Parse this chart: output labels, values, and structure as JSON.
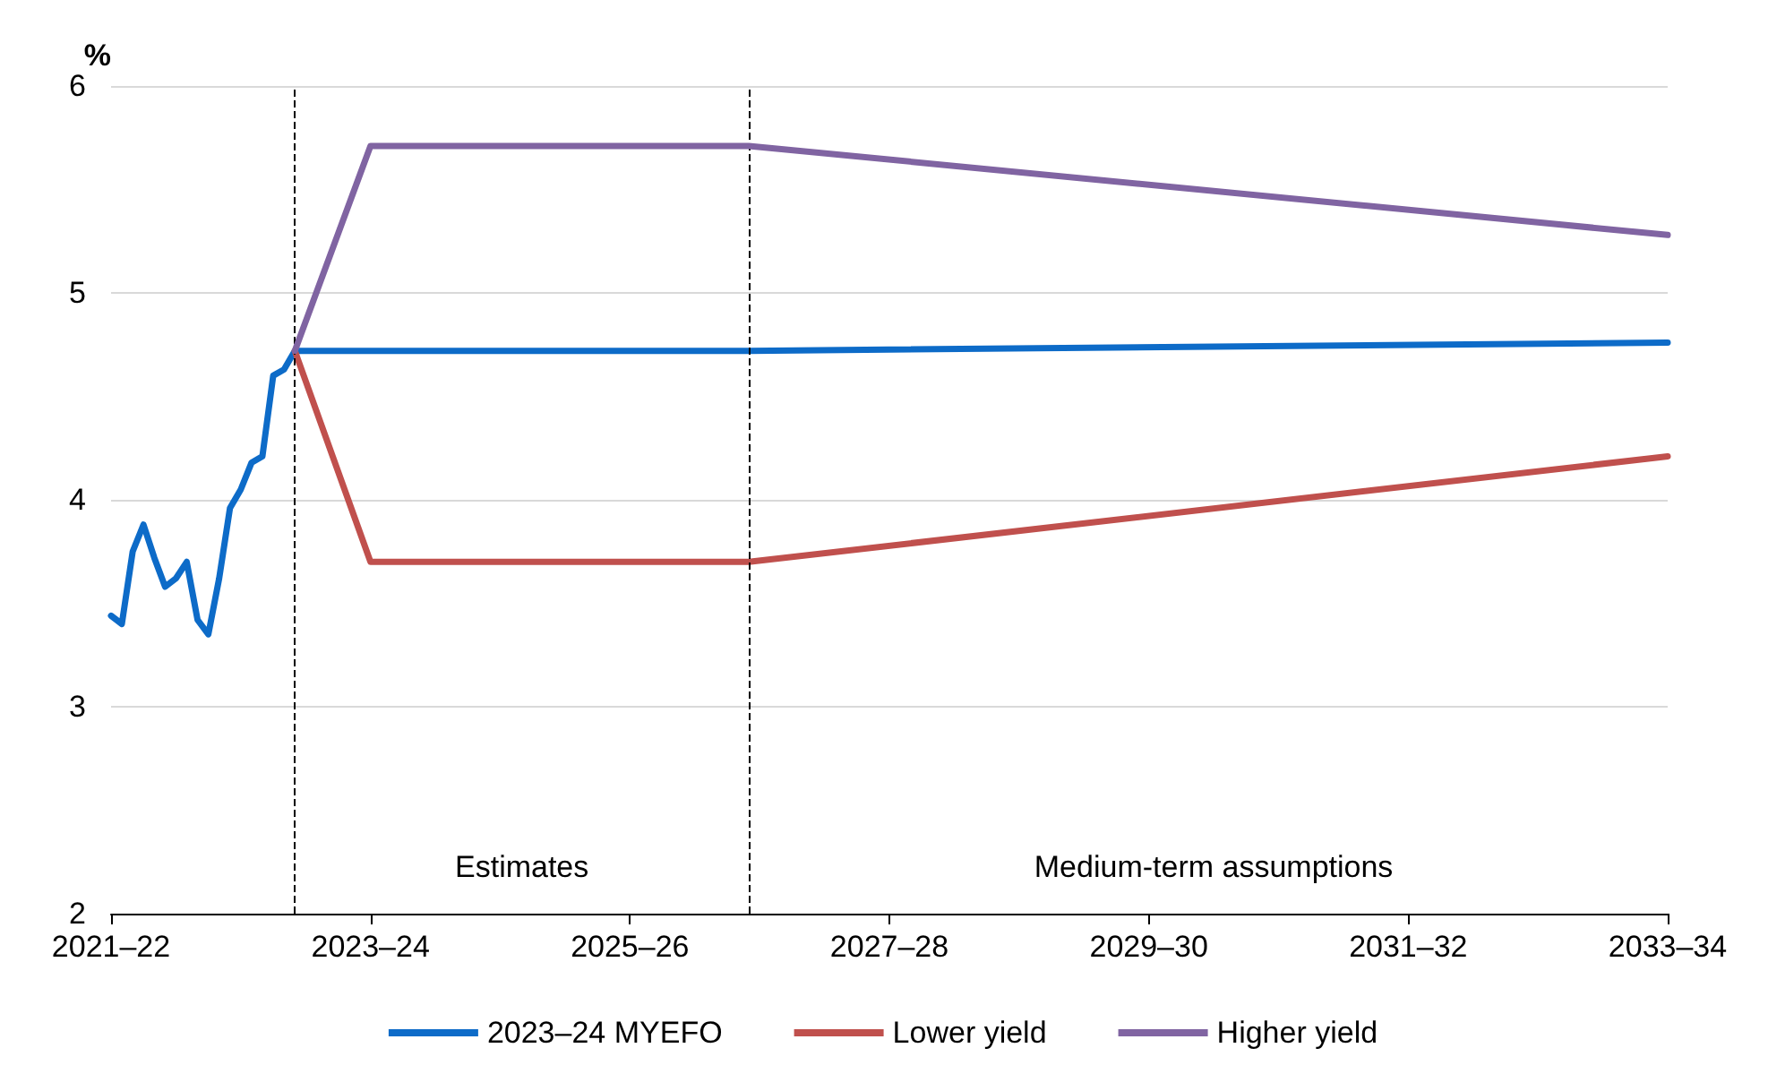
{
  "chart_data": {
    "type": "line",
    "ylabel": "%",
    "categories": [
      "2021–22",
      null,
      null,
      null,
      null,
      null,
      null,
      null,
      null,
      null,
      null,
      null,
      null,
      null,
      null,
      null,
      null,
      null,
      null,
      null,
      null,
      null,
      null,
      null,
      "2023–24",
      null,
      null,
      null,
      null,
      null,
      null,
      null,
      null,
      null,
      null,
      null,
      null,
      null,
      null,
      null,
      null,
      null,
      null,
      null,
      null,
      null,
      null,
      null,
      "2025–26",
      null,
      null,
      null,
      null,
      null,
      null,
      null,
      null,
      null,
      null,
      null,
      null,
      null,
      null,
      null,
      null,
      null,
      null,
      null,
      null,
      null,
      null,
      null,
      "2027–28",
      null,
      null,
      null,
      null,
      null,
      null,
      null,
      null,
      null,
      null,
      null,
      null,
      null,
      null,
      null,
      null,
      null,
      null,
      null,
      null,
      null,
      null,
      null,
      "2029–30",
      null,
      null,
      null,
      null,
      null,
      null,
      null,
      null,
      null,
      null,
      null,
      null,
      null,
      null,
      null,
      null,
      null,
      null,
      null,
      null,
      null,
      null,
      null,
      "2031–32",
      null,
      null,
      null,
      null,
      null,
      null,
      null,
      null,
      null,
      null,
      null,
      null,
      null,
      null,
      null,
      null,
      null,
      null,
      null,
      null,
      null,
      null,
      null,
      "2033–34"
    ],
    "ylim": [
      2,
      6
    ],
    "yticks": [
      2,
      3,
      4,
      5,
      6
    ],
    "grid": "y",
    "legend": "bottom",
    "line_style": "solid",
    "marker": "none",
    "series": [
      {
        "name": "2023–24 MYEFO",
        "color": "#0d6bc8",
        "values": [
          3.44,
          3.4,
          3.75,
          3.88,
          3.72,
          3.58,
          3.62,
          3.7,
          3.42,
          3.35,
          3.62,
          3.96,
          4.05,
          4.18,
          4.21,
          4.6,
          4.63,
          4.72,
          null,
          null,
          null,
          null,
          null,
          null,
          null,
          null,
          null,
          null,
          null,
          null,
          null,
          null,
          null,
          null,
          null,
          null,
          null,
          null,
          null,
          null,
          null,
          null,
          null,
          null,
          null,
          null,
          null,
          null,
          null,
          null,
          null,
          null,
          null,
          null,
          null,
          null,
          null,
          null,
          null,
          4.72,
          null,
          null,
          null,
          null,
          null,
          null,
          null,
          null,
          null,
          null,
          null,
          null,
          null,
          null,
          null,
          null,
          null,
          null,
          null,
          null,
          null,
          null,
          null,
          null,
          null,
          null,
          null,
          null,
          null,
          null,
          null,
          null,
          null,
          null,
          null,
          null,
          null,
          null,
          null,
          null,
          null,
          null,
          null,
          null,
          null,
          null,
          null,
          null,
          null,
          null,
          null,
          null,
          null,
          null,
          null,
          null,
          null,
          null,
          null,
          null,
          null,
          null,
          null,
          null,
          null,
          null,
          null,
          null,
          null,
          null,
          null,
          null,
          null,
          null,
          null,
          null,
          null,
          null,
          null,
          null,
          null,
          null,
          null,
          null,
          4.76
        ]
      },
      {
        "name": "Lower yield",
        "color": "#c0504d",
        "values": [
          null,
          null,
          null,
          null,
          null,
          null,
          null,
          null,
          null,
          null,
          null,
          null,
          null,
          null,
          null,
          null,
          null,
          4.72,
          null,
          null,
          null,
          null,
          null,
          null,
          3.7,
          null,
          null,
          null,
          null,
          null,
          null,
          null,
          null,
          null,
          null,
          null,
          null,
          null,
          null,
          null,
          null,
          null,
          null,
          null,
          null,
          null,
          null,
          null,
          null,
          null,
          null,
          null,
          null,
          null,
          null,
          null,
          null,
          null,
          null,
          3.7,
          null,
          null,
          null,
          null,
          null,
          null,
          null,
          null,
          null,
          null,
          null,
          null,
          null,
          null,
          null,
          null,
          null,
          null,
          null,
          null,
          null,
          null,
          null,
          null,
          null,
          null,
          null,
          null,
          null,
          null,
          null,
          null,
          null,
          null,
          null,
          null,
          null,
          null,
          null,
          null,
          null,
          null,
          null,
          null,
          null,
          null,
          null,
          null,
          null,
          null,
          null,
          null,
          null,
          null,
          null,
          null,
          null,
          null,
          null,
          null,
          null,
          null,
          null,
          null,
          null,
          null,
          null,
          null,
          null,
          null,
          null,
          null,
          null,
          null,
          null,
          null,
          null,
          null,
          null,
          null,
          null,
          null,
          null,
          null,
          4.21
        ]
      },
      {
        "name": "Higher yield",
        "color": "#8064a2",
        "values": [
          null,
          null,
          null,
          null,
          null,
          null,
          null,
          null,
          null,
          null,
          null,
          null,
          null,
          null,
          null,
          null,
          null,
          4.72,
          null,
          null,
          null,
          null,
          null,
          null,
          5.71,
          null,
          null,
          null,
          null,
          null,
          null,
          null,
          null,
          null,
          null,
          null,
          null,
          null,
          null,
          null,
          null,
          null,
          null,
          null,
          null,
          null,
          null,
          null,
          null,
          null,
          null,
          null,
          null,
          null,
          null,
          null,
          null,
          null,
          null,
          5.71,
          null,
          null,
          null,
          null,
          null,
          null,
          null,
          null,
          null,
          null,
          null,
          null,
          null,
          null,
          null,
          null,
          null,
          null,
          null,
          null,
          null,
          null,
          null,
          null,
          null,
          null,
          null,
          null,
          null,
          null,
          null,
          null,
          null,
          null,
          null,
          null,
          null,
          null,
          null,
          null,
          null,
          null,
          null,
          null,
          null,
          null,
          null,
          null,
          null,
          null,
          null,
          null,
          null,
          null,
          null,
          null,
          null,
          null,
          null,
          null,
          null,
          null,
          null,
          null,
          null,
          null,
          null,
          null,
          null,
          null,
          null,
          null,
          null,
          null,
          null,
          null,
          null,
          null,
          null,
          null,
          null,
          null,
          null,
          null,
          5.28
        ]
      }
    ],
    "annotations": [
      "Estimates",
      "Medium-term assumptions"
    ]
  }
}
